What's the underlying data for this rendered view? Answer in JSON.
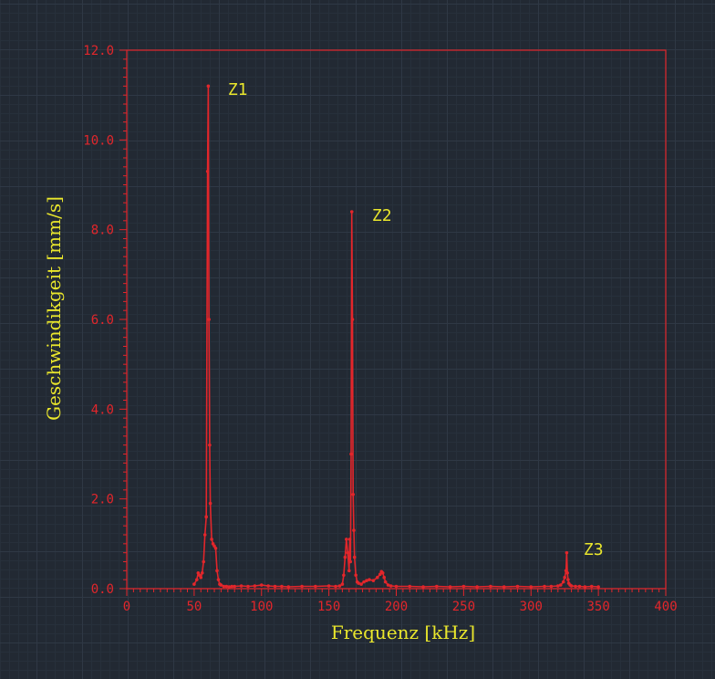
{
  "chart_data": {
    "type": "line",
    "title": "",
    "xlabel": "Frequenz  [kHz]",
    "ylabel": "Geschwindikgeit  [mm/s]",
    "xlim": [
      0,
      400
    ],
    "ylim": [
      0,
      12
    ],
    "x_ticks": [
      "0",
      "50",
      "100",
      "150",
      "200",
      "250",
      "300",
      "350",
      "400"
    ],
    "y_ticks": [
      "0.0",
      "2.0",
      "4.0",
      "6.0",
      "8.0",
      "10.0",
      "12.0"
    ],
    "grid": true,
    "line_color": "#e3262b",
    "label_color": "#e9e62c",
    "series": [
      {
        "x": [
          50,
          52,
          53,
          54,
          55,
          56,
          57,
          58,
          59,
          60,
          60.5,
          61,
          61.5,
          62,
          63,
          64,
          65,
          66,
          67,
          68,
          69,
          70,
          72,
          74,
          76,
          78,
          80,
          85,
          90,
          95,
          100,
          105,
          110,
          115,
          120,
          130,
          140,
          150,
          155,
          158,
          160,
          161,
          162,
          163,
          164,
          165,
          165.5,
          166,
          166.5,
          167,
          167.5,
          168,
          168.5,
          169,
          170,
          171,
          172,
          174,
          176,
          178,
          180,
          183,
          186,
          188,
          189,
          190,
          191,
          192,
          194,
          196,
          200,
          210,
          220,
          230,
          240,
          250,
          260,
          270,
          280,
          290,
          300,
          310,
          315,
          320,
          322,
          324,
          325,
          326,
          326.5,
          327,
          327.5,
          328,
          329,
          330,
          333,
          336,
          340,
          345,
          350
        ],
        "y": [
          0.1,
          0.2,
          0.35,
          0.3,
          0.25,
          0.35,
          0.6,
          1.2,
          1.6,
          9.3,
          11.2,
          6.0,
          3.2,
          1.9,
          1.1,
          1.0,
          0.95,
          0.9,
          0.4,
          0.2,
          0.1,
          0.08,
          0.05,
          0.05,
          0.04,
          0.05,
          0.05,
          0.06,
          0.05,
          0.06,
          0.08,
          0.06,
          0.05,
          0.05,
          0.04,
          0.05,
          0.05,
          0.06,
          0.05,
          0.06,
          0.1,
          0.3,
          0.7,
          1.1,
          0.8,
          0.4,
          1.1,
          0.6,
          3.0,
          8.4,
          6.0,
          2.1,
          1.3,
          0.7,
          0.3,
          0.15,
          0.12,
          0.1,
          0.15,
          0.18,
          0.2,
          0.18,
          0.25,
          0.32,
          0.38,
          0.35,
          0.25,
          0.15,
          0.08,
          0.06,
          0.05,
          0.05,
          0.04,
          0.05,
          0.04,
          0.05,
          0.04,
          0.05,
          0.04,
          0.05,
          0.04,
          0.05,
          0.05,
          0.06,
          0.08,
          0.15,
          0.25,
          0.4,
          0.8,
          0.35,
          0.2,
          0.12,
          0.08,
          0.06,
          0.05,
          0.05,
          0.04,
          0.05,
          0.04
        ]
      }
    ],
    "annotations": [
      {
        "text": "Z1",
        "x": 75,
        "y": 11.0
      },
      {
        "text": "Z2",
        "x": 182,
        "y": 8.2
      },
      {
        "text": "Z3",
        "x": 339,
        "y": 0.75
      }
    ]
  }
}
